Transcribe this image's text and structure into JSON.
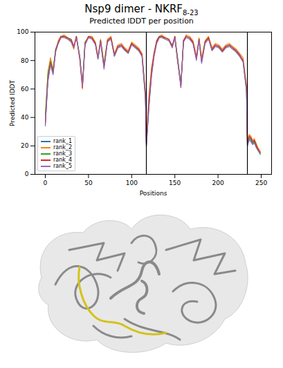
{
  "chart_data": {
    "type": "line",
    "title": "Nsp9 dimer - NKRF",
    "title_subscript": "8-23",
    "subtitle": "Predicted lDDT per position",
    "x_label": "Positions",
    "y_label": "Predicted lDDT",
    "x": [
      0,
      3,
      6,
      9,
      12,
      15,
      18,
      22,
      26,
      30,
      33,
      36,
      40,
      43,
      46,
      50,
      54,
      58,
      61,
      64,
      68,
      72,
      76,
      80,
      84,
      88,
      92,
      96,
      100,
      104,
      108,
      112,
      116,
      117,
      120,
      123,
      126,
      129,
      132,
      135,
      139,
      143,
      147,
      150,
      153,
      157,
      160,
      163,
      167,
      171,
      175,
      178,
      181,
      185,
      189,
      193,
      197,
      201,
      205,
      209,
      213,
      217,
      221,
      225,
      229,
      233,
      234,
      236,
      238,
      240,
      242,
      244,
      246,
      249
    ],
    "series": [
      {
        "name": "rank_1",
        "color": "#1f77b4",
        "values": [
          35,
          68,
          80,
          72,
          88,
          93,
          97,
          97,
          96,
          94,
          89,
          97,
          82,
          62,
          92,
          97,
          96,
          92,
          82,
          94,
          76,
          94,
          96,
          84,
          90,
          91,
          88,
          86,
          92,
          90,
          88,
          84,
          55,
          22,
          50,
          72,
          85,
          93,
          97,
          97,
          96,
          95,
          90,
          97,
          82,
          62,
          94,
          97,
          96,
          93,
          82,
          95,
          80,
          93,
          96,
          88,
          91,
          90,
          87,
          90,
          91,
          89,
          87,
          84,
          80,
          60,
          20,
          26,
          25,
          22,
          24,
          21,
          18,
          15
        ]
      },
      {
        "name": "rank_2",
        "color": "#ff7f0e",
        "values": [
          38,
          72,
          82,
          74,
          87,
          94,
          97,
          98,
          96,
          93,
          88,
          97,
          80,
          60,
          91,
          97,
          97,
          93,
          83,
          95,
          78,
          95,
          97,
          85,
          91,
          92,
          89,
          87,
          93,
          91,
          89,
          85,
          57,
          25,
          55,
          75,
          86,
          94,
          97,
          98,
          96,
          95,
          89,
          96,
          80,
          64,
          93,
          98,
          97,
          94,
          83,
          96,
          82,
          94,
          97,
          89,
          92,
          91,
          88,
          91,
          92,
          90,
          88,
          85,
          82,
          62,
          24,
          28,
          27,
          24,
          25,
          22,
          19,
          16
        ]
      },
      {
        "name": "rank_3",
        "color": "#2ca02c",
        "values": [
          42,
          70,
          79,
          73,
          88,
          92,
          96,
          97,
          95,
          94,
          90,
          96,
          83,
          63,
          93,
          96,
          96,
          92,
          81,
          94,
          77,
          94,
          96,
          83,
          89,
          90,
          88,
          85,
          92,
          89,
          87,
          83,
          52,
          20,
          48,
          70,
          84,
          93,
          96,
          97,
          95,
          94,
          91,
          96,
          83,
          63,
          94,
          97,
          96,
          92,
          81,
          95,
          79,
          93,
          96,
          87,
          90,
          89,
          86,
          89,
          90,
          88,
          86,
          83,
          79,
          58,
          22,
          25,
          24,
          21,
          23,
          20,
          17,
          14
        ]
      },
      {
        "name": "rank_4",
        "color": "#d62728",
        "values": [
          36,
          66,
          78,
          71,
          87,
          93,
          97,
          97,
          96,
          95,
          90,
          97,
          81,
          61,
          92,
          97,
          96,
          92,
          82,
          94,
          75,
          94,
          96,
          84,
          90,
          91,
          88,
          86,
          92,
          90,
          88,
          84,
          56,
          21,
          52,
          73,
          85,
          94,
          97,
          97,
          96,
          95,
          90,
          97,
          81,
          61,
          94,
          97,
          96,
          93,
          82,
          95,
          79,
          93,
          96,
          88,
          91,
          90,
          87,
          90,
          91,
          89,
          87,
          84,
          80,
          61,
          21,
          27,
          26,
          23,
          24,
          21,
          18,
          15
        ]
      },
      {
        "name": "rank_5",
        "color": "#9467bd",
        "values": [
          34,
          65,
          77,
          70,
          86,
          92,
          96,
          96,
          95,
          93,
          89,
          96,
          82,
          62,
          91,
          96,
          95,
          91,
          81,
          93,
          74,
          93,
          95,
          83,
          89,
          90,
          87,
          85,
          91,
          89,
          87,
          83,
          54,
          19,
          47,
          69,
          83,
          92,
          96,
          96,
          95,
          94,
          89,
          96,
          81,
          62,
          93,
          96,
          95,
          92,
          80,
          94,
          78,
          92,
          95,
          87,
          90,
          89,
          86,
          89,
          90,
          88,
          86,
          83,
          79,
          59,
          20,
          24,
          23,
          21,
          22,
          19,
          17,
          15
        ]
      }
    ],
    "chain_boundaries": [
      117,
      234
    ],
    "xlim": [
      -12,
      262
    ],
    "xticks": [
      0,
      50,
      100,
      150,
      200,
      250
    ],
    "ylim": [
      0,
      100
    ],
    "yticks": [
      0,
      20,
      40,
      60,
      80,
      100
    ],
    "grid": false,
    "legend": "lower left"
  }
}
